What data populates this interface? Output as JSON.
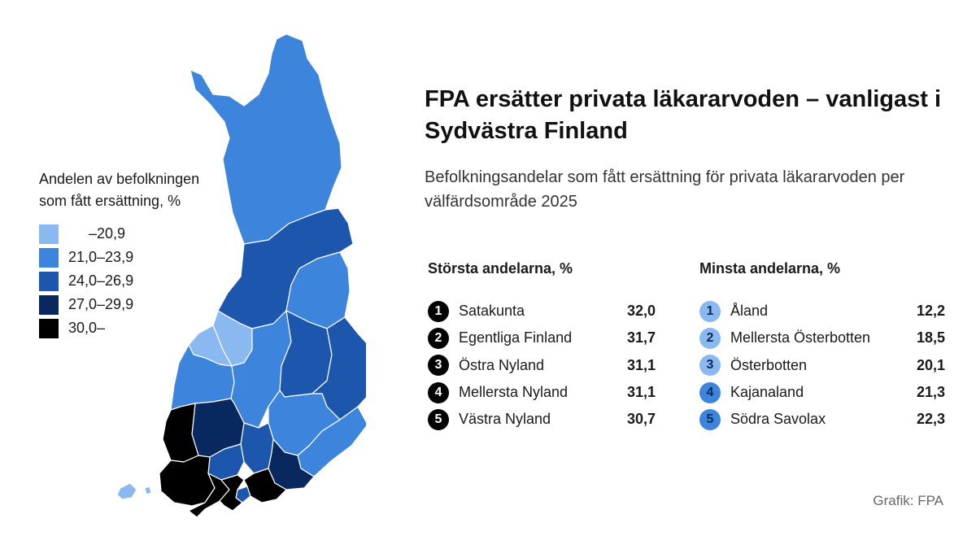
{
  "title": "FPA ersätter privata läkararvoden – vanligast i Sydvästra Finland",
  "subtitle": "Befolkningsandelar som fått ersättning för privata läkararvoden per välfärdsområde 2025",
  "legend": {
    "title": "Andelen av befolkningen som fått ersättning, %",
    "classes": [
      {
        "label": "     –20,9",
        "color": "#8ab8f0"
      },
      {
        "label": "21,0–23,9",
        "color": "#3d84dc"
      },
      {
        "label": "24,0–26,9",
        "color": "#1d56ad"
      },
      {
        "label": "27,0–29,9",
        "color": "#0a2860"
      },
      {
        "label": "30,0–",
        "color": "#000000"
      }
    ]
  },
  "largest": {
    "header": "Största andelarna, %",
    "items": [
      {
        "rank": "1",
        "name": "Satakunta",
        "value": "32,0"
      },
      {
        "rank": "2",
        "name": "Egentliga Finland",
        "value": "31,7"
      },
      {
        "rank": "3",
        "name": "Östra Nyland",
        "value": "31,1"
      },
      {
        "rank": "4",
        "name": "Mellersta Nyland",
        "value": "31,1"
      },
      {
        "rank": "5",
        "name": "Västra Nyland",
        "value": "30,7"
      }
    ]
  },
  "smallest": {
    "header": "Minsta andelarna, %",
    "items": [
      {
        "rank": "1",
        "name": "Åland",
        "value": "12,2",
        "color": "#8ab8f0"
      },
      {
        "rank": "2",
        "name": "Mellersta Österbotten",
        "value": "18,5",
        "color": "#8ab8f0"
      },
      {
        "rank": "3",
        "name": "Österbotten",
        "value": "20,1",
        "color": "#8ab8f0"
      },
      {
        "rank": "4",
        "name": "Kajanaland",
        "value": "21,3",
        "color": "#3d84dc"
      },
      {
        "rank": "5",
        "name": "Södra Savolax",
        "value": "22,3",
        "color": "#3d84dc"
      }
    ]
  },
  "credit": "Grafik: FPA"
}
